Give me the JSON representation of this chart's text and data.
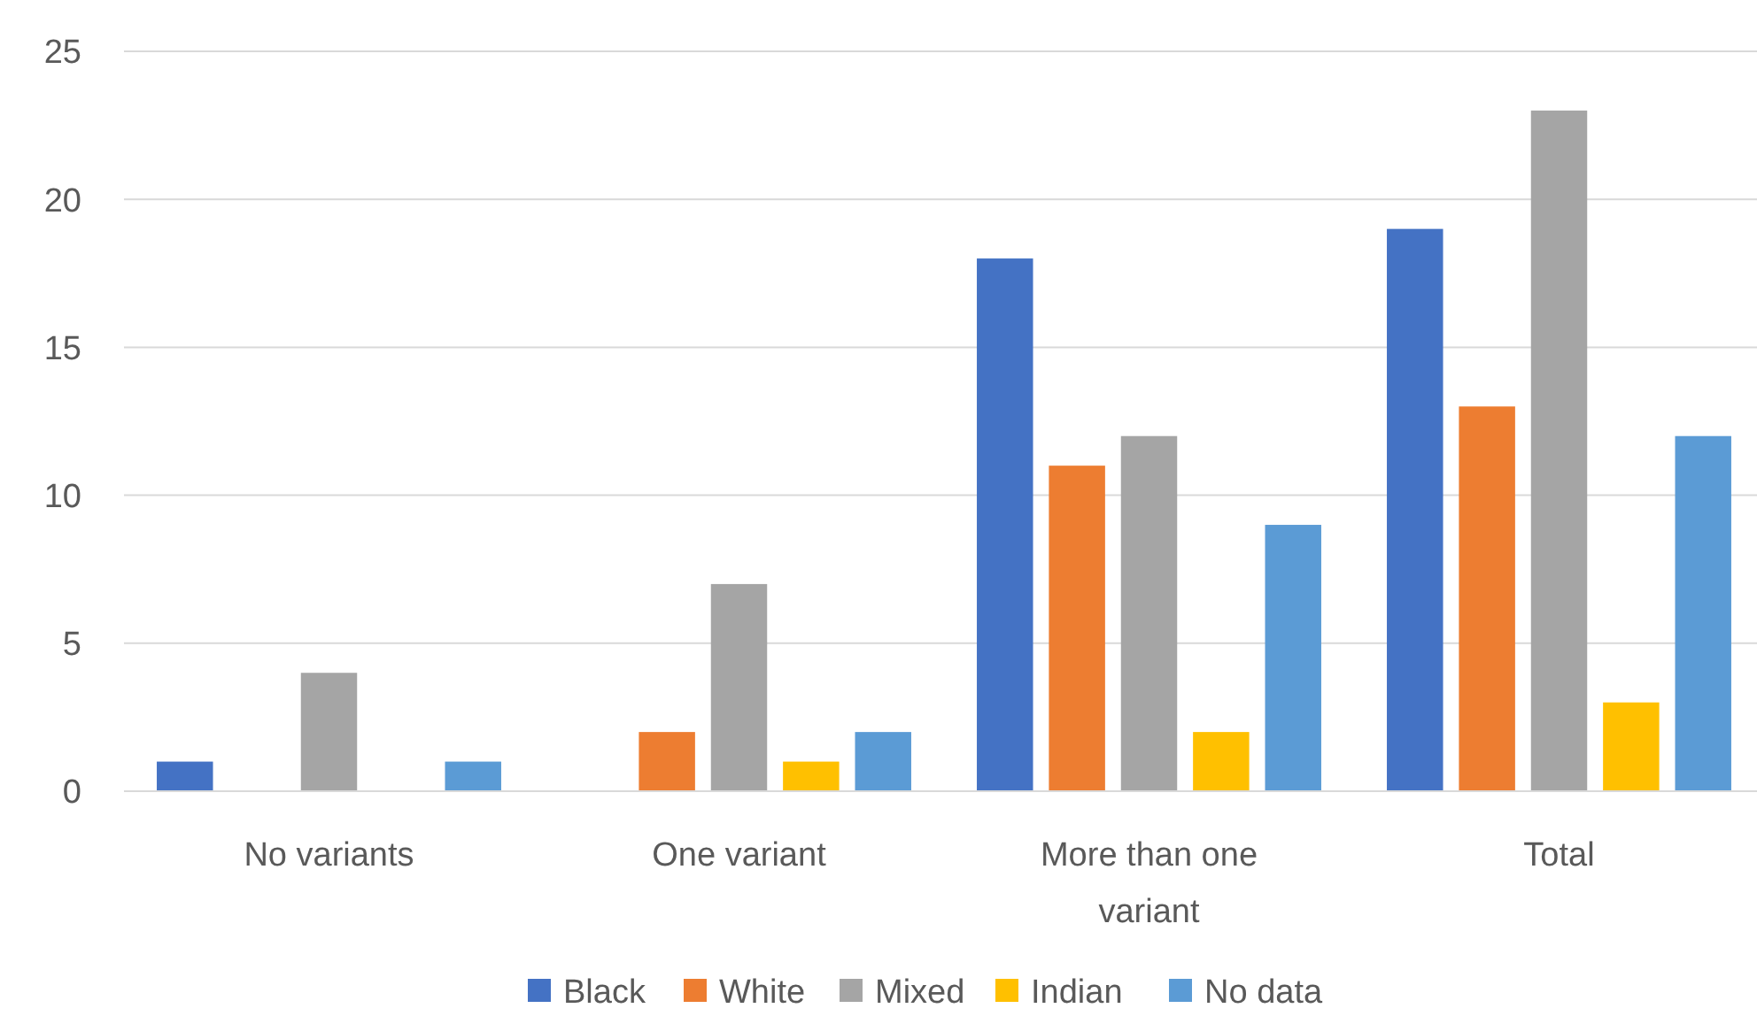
{
  "chart_data": {
    "type": "bar",
    "categories": [
      "No variants",
      "One variant",
      "More than one variant",
      "Total"
    ],
    "series": [
      {
        "name": "Black",
        "color": "#4472c4",
        "values": [
          1,
          0,
          18,
          19
        ]
      },
      {
        "name": "White",
        "color": "#ed7d31",
        "values": [
          0,
          2,
          11,
          13
        ]
      },
      {
        "name": "Mixed",
        "color": "#a5a5a5",
        "values": [
          4,
          7,
          12,
          23
        ]
      },
      {
        "name": "Indian",
        "color": "#ffc000",
        "values": [
          0,
          1,
          2,
          3
        ]
      },
      {
        "name": "No data",
        "color": "#5b9bd5",
        "values": [
          1,
          2,
          9,
          12
        ]
      }
    ],
    "ylim": [
      0,
      25
    ],
    "yticks": [
      0,
      5,
      10,
      15,
      20,
      25
    ],
    "grid": "y",
    "legend": "bottom"
  }
}
